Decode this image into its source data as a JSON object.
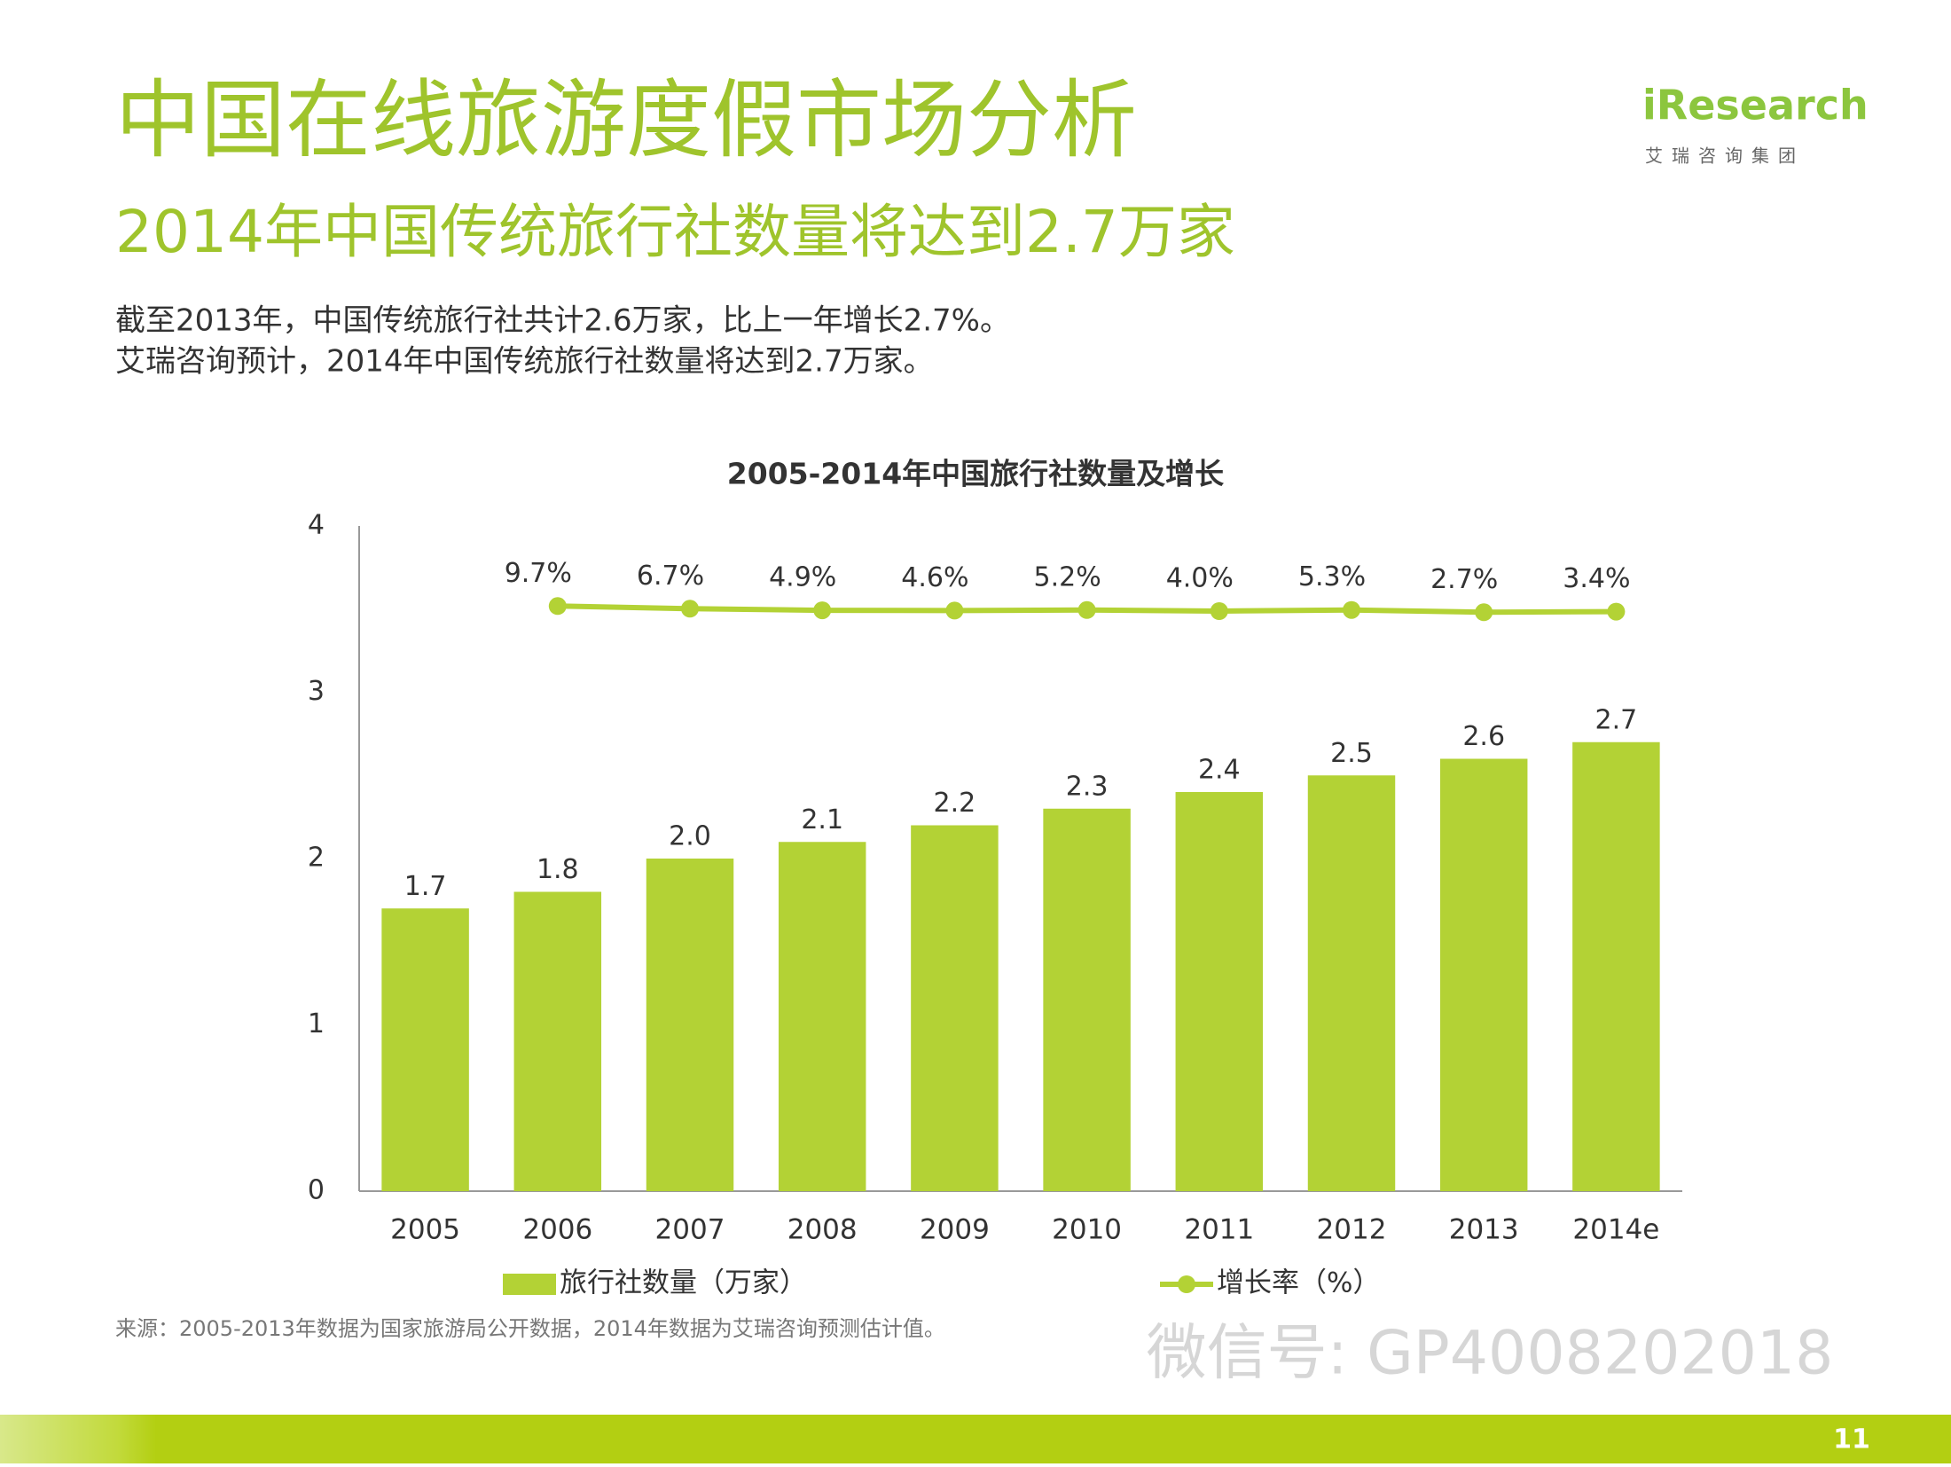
{
  "header": {
    "title": "中国在线旅游度假市场分析",
    "subtitle": "2014年中国传统旅行社数量将达到2.7万家",
    "logo": "iResearch",
    "logo_sub": "艾瑞咨询集团"
  },
  "body": [
    "截至2013年，中国传统旅行社共计2.6万家，比上一年增长2.7%。",
    "艾瑞咨询预计，2014年中国传统旅行社数量将达到2.7万家。"
  ],
  "chart_data": {
    "type": "bar",
    "title": "2005-2014年中国旅行社数量及增长",
    "categories": [
      "2005",
      "2006",
      "2007",
      "2008",
      "2009",
      "2010",
      "2011",
      "2012",
      "2013",
      "2014e"
    ],
    "series": [
      {
        "name": "旅行社数量（万家）",
        "color": "#b3d235",
        "type": "bar",
        "values": [
          1.7,
          1.8,
          2.0,
          2.1,
          2.2,
          2.3,
          2.4,
          2.5,
          2.6,
          2.7
        ],
        "value_labels": [
          "1.7",
          "1.8",
          "2.0",
          "2.1",
          "2.2",
          "2.3",
          "2.4",
          "2.5",
          "2.6",
          "2.7"
        ]
      },
      {
        "name": "增长率（%）",
        "color": "#b3d235",
        "type": "line",
        "axis": "y2",
        "values": [
          null,
          9.7,
          6.7,
          4.9,
          4.6,
          5.2,
          4.0,
          5.3,
          2.7,
          3.4
        ],
        "value_labels": [
          null,
          "9.7%",
          "6.7%",
          "4.9%",
          "4.6%",
          "5.2%",
          "4.0%",
          "5.3%",
          "2.7%",
          "3.4%"
        ]
      }
    ],
    "ylim": [
      0,
      4
    ],
    "yticks": [
      0,
      1,
      2,
      3,
      4
    ],
    "y2lim": [
      -650,
      100
    ],
    "grid": false,
    "legend": "bottom"
  },
  "source": "来源：2005-2013年数据为国家旅游局公开数据，2014年数据为艾瑞咨询预测估计值。",
  "watermark": "微信号: GP4008202018",
  "page_number": "11"
}
